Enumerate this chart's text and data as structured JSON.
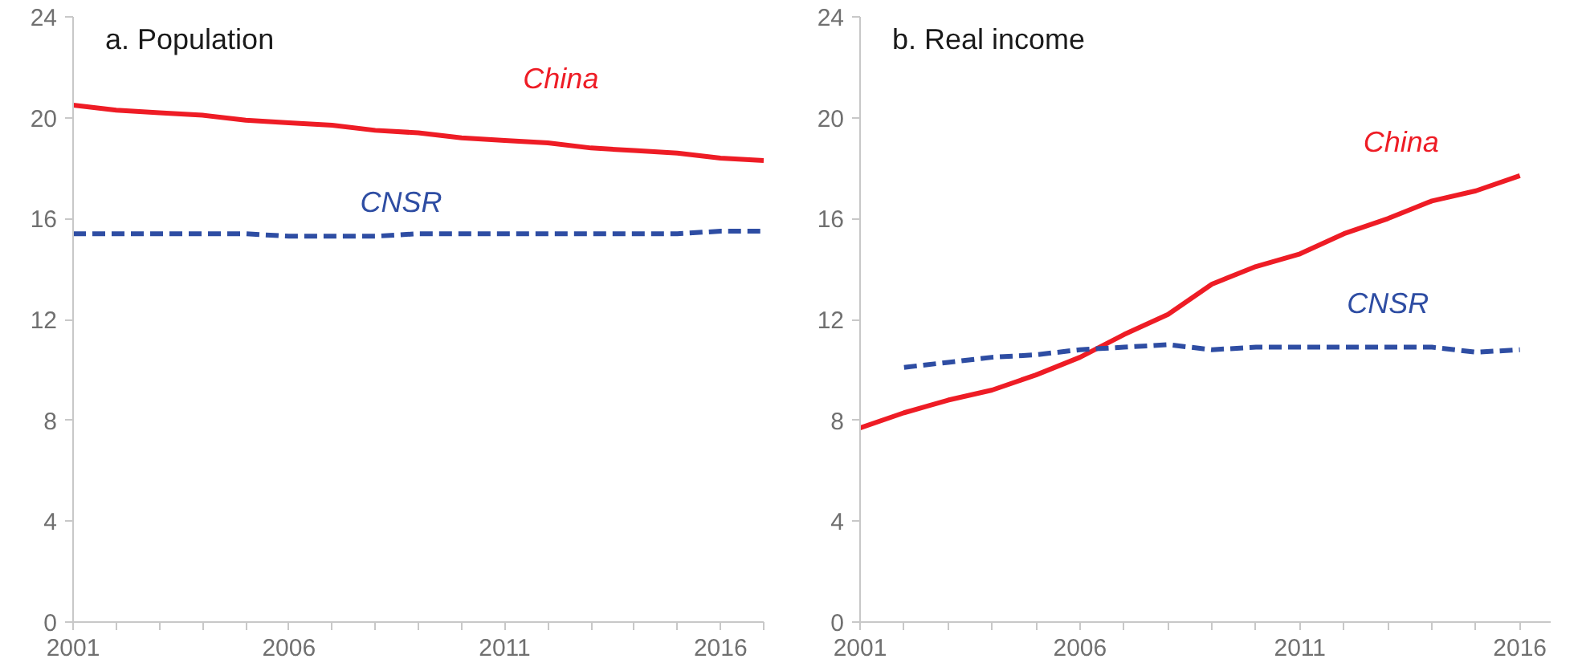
{
  "chart_data": [
    {
      "type": "line",
      "title": "a. Population",
      "x": [
        2001,
        2002,
        2003,
        2004,
        2005,
        2006,
        2007,
        2008,
        2009,
        2010,
        2011,
        2012,
        2013,
        2014,
        2015,
        2016,
        2017
      ],
      "series": [
        {
          "name": "China",
          "color": "#ee1c25",
          "line_style": "solid",
          "values": [
            20.5,
            20.3,
            20.2,
            20.1,
            19.9,
            19.8,
            19.7,
            19.5,
            19.4,
            19.2,
            19.1,
            19.0,
            18.8,
            18.7,
            18.6,
            18.4,
            18.3
          ]
        },
        {
          "name": "CNSR",
          "color": "#2e4da3",
          "line_style": "dashed",
          "values": [
            15.4,
            15.4,
            15.4,
            15.4,
            15.4,
            15.3,
            15.3,
            15.3,
            15.4,
            15.4,
            15.4,
            15.4,
            15.4,
            15.4,
            15.4,
            15.5,
            15.5
          ]
        }
      ],
      "xlim": [
        2001,
        2017
      ],
      "ylim": [
        0,
        24
      ],
      "yticks": [
        0,
        4,
        8,
        12,
        16,
        20,
        24
      ],
      "xticks": [
        2001,
        {
          "value": 2002,
          "label": null
        },
        {
          "value": 2003,
          "label": null
        },
        {
          "value": 2004,
          "label": null
        },
        {
          "value": 2005,
          "label": null
        },
        2006,
        {
          "value": 2007,
          "label": null
        },
        {
          "value": 2008,
          "label": null
        },
        {
          "value": 2009,
          "label": null
        },
        {
          "value": 2010,
          "label": null
        },
        2011,
        {
          "value": 2012,
          "label": null
        },
        {
          "value": 2013,
          "label": null
        },
        {
          "value": 2014,
          "label": null
        },
        {
          "value": 2015,
          "label": null
        },
        2016,
        {
          "value": 2017,
          "label": null
        }
      ],
      "grid": false
    },
    {
      "type": "line",
      "title": "b. Real income",
      "x": [
        2001,
        2002,
        2003,
        2004,
        2005,
        2006,
        2007,
        2008,
        2009,
        2010,
        2011,
        2012,
        2013,
        2014,
        2015,
        2016
      ],
      "series": [
        {
          "name": "China",
          "color": "#ee1c25",
          "line_style": "solid",
          "values": [
            7.7,
            8.3,
            8.8,
            9.2,
            9.8,
            10.5,
            11.4,
            12.2,
            13.4,
            14.1,
            14.6,
            15.4,
            16.0,
            16.7,
            17.1,
            17.7
          ]
        },
        {
          "name": "CNSR",
          "color": "#2e4da3",
          "line_style": "dashed",
          "values": [
            null,
            10.1,
            10.3,
            10.5,
            10.6,
            10.8,
            10.9,
            11.0,
            10.8,
            10.9,
            10.9,
            10.9,
            10.9,
            10.9,
            10.7,
            10.8
          ]
        }
      ],
      "xlim": [
        2001,
        2016.7
      ],
      "ylim": [
        0,
        24
      ],
      "yticks": [
        0,
        4,
        8,
        12,
        16,
        20,
        24
      ],
      "xticks": [
        2001,
        {
          "value": 2002,
          "label": null
        },
        {
          "value": 2003,
          "label": null
        },
        {
          "value": 2004,
          "label": null
        },
        {
          "value": 2005,
          "label": null
        },
        2006,
        {
          "value": 2007,
          "label": null
        },
        {
          "value": 2008,
          "label": null
        },
        {
          "value": 2009,
          "label": null
        },
        {
          "value": 2010,
          "label": null
        },
        2011,
        {
          "value": 2012,
          "label": null
        },
        {
          "value": 2013,
          "label": null
        },
        {
          "value": 2014,
          "label": null
        },
        {
          "value": 2015,
          "label": null
        },
        2016
      ],
      "grid": false
    }
  ]
}
